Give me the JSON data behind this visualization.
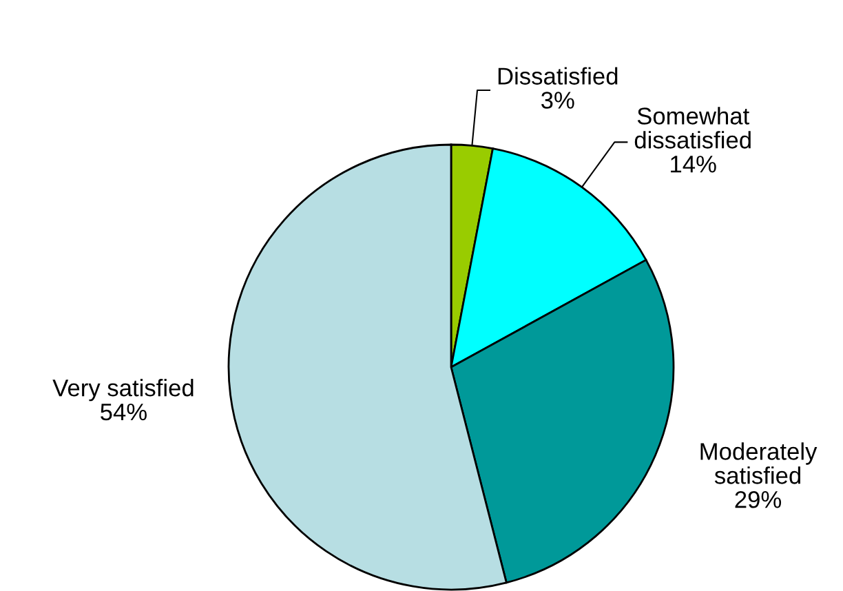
{
  "chart_data": {
    "type": "pie",
    "categories": [
      "Dissatisfied",
      "Somewhat dissatisfied",
      "Moderately satisfied",
      "Very satisfied"
    ],
    "values": [
      3,
      14,
      29,
      54
    ],
    "value_labels": [
      "3%",
      "14%",
      "29%",
      "54%"
    ],
    "colors": [
      "#99cc00",
      "#00ffff",
      "#009999",
      "#b7dee3"
    ],
    "legend": false
  }
}
